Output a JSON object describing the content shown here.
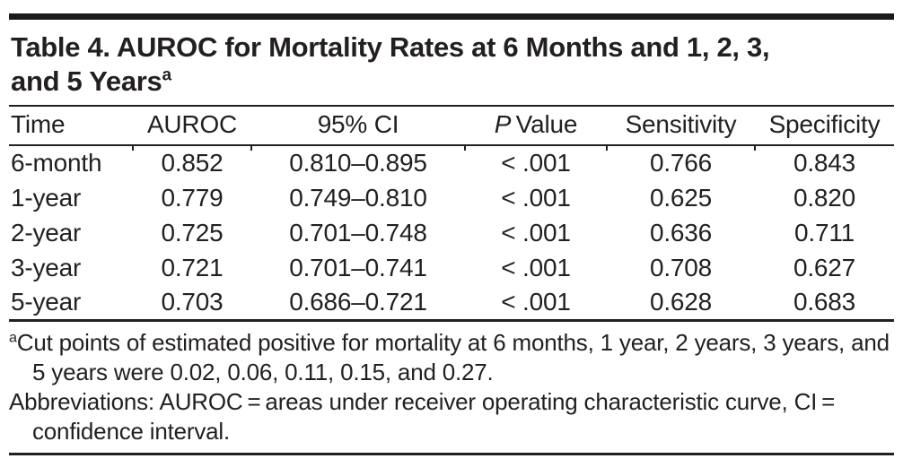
{
  "title": {
    "line1": "Table 4. AUROC for Mortality Rates at 6 Months and 1, 2, 3,",
    "line2": "and 5 Years",
    "superscript": "a"
  },
  "table": {
    "columns": {
      "time": "Time",
      "auroc": "AUROC",
      "ci": "95% CI",
      "p_italic": "P",
      "p_rest": " Value",
      "sensitivity": "Sensitivity",
      "specificity": "Specificity"
    },
    "rows": [
      {
        "time": "6-month",
        "auroc": "0.852",
        "ci": "0.810–0.895",
        "p_value": "< .001",
        "sensitivity": "0.766",
        "specificity": "0.843"
      },
      {
        "time": "1-year",
        "auroc": "0.779",
        "ci": "0.749–0.810",
        "p_value": "< .001",
        "sensitivity": "0.625",
        "specificity": "0.820"
      },
      {
        "time": "2-year",
        "auroc": "0.725",
        "ci": "0.701–0.748",
        "p_value": "< .001",
        "sensitivity": "0.636",
        "specificity": "0.711"
      },
      {
        "time": "3-year",
        "auroc": "0.721",
        "ci": "0.701–0.741",
        "p_value": "< .001",
        "sensitivity": "0.708",
        "specificity": "0.627"
      },
      {
        "time": "5-year",
        "auroc": "0.703",
        "ci": "0.686–0.721",
        "p_value": "< .001",
        "sensitivity": "0.628",
        "specificity": "0.683"
      }
    ]
  },
  "footnotes": {
    "cut_points_marker": "a",
    "cut_points_text": "Cut points of estimated positive for mortality at 6 months, 1 year, 2 years, 3 years, and 5 years were 0.02, 0.06, 0.11, 0.15, and 0.27.",
    "abbreviations_text": "Abbreviations: AUROC = areas under receiver operating characteristic curve, CI = confidence interval."
  },
  "colors": {
    "text": "#231f20",
    "rule": "#231f20",
    "bar": "#1a1a1a"
  }
}
